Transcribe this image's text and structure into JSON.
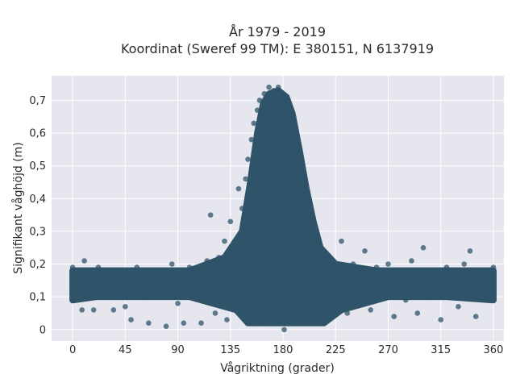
{
  "chart_data": {
    "type": "scatter",
    "title_line1": "År 1979 - 2019",
    "title_line2": "Koordinat (Sweref 99 TM): E 380151, N 6137919",
    "xlabel": "Vågriktning (grader)",
    "ylabel": "Signifikant våghöjd (m)",
    "xlim": [
      -18,
      369
    ],
    "ylim": [
      -0.035,
      0.775
    ],
    "x_ticks": [
      {
        "value": 0,
        "label": "0"
      },
      {
        "value": 45,
        "label": "45"
      },
      {
        "value": 90,
        "label": "90"
      },
      {
        "value": 135,
        "label": "135"
      },
      {
        "value": 180,
        "label": "180"
      },
      {
        "value": 225,
        "label": "225"
      },
      {
        "value": 270,
        "label": "270"
      },
      {
        "value": 315,
        "label": "315"
      },
      {
        "value": 360,
        "label": "360"
      }
    ],
    "y_ticks": [
      {
        "value": 0,
        "label": "0"
      },
      {
        "value": 0.1,
        "label": "0,1"
      },
      {
        "value": 0.2,
        "label": "0,2"
      },
      {
        "value": 0.3,
        "label": "0,3"
      },
      {
        "value": 0.4,
        "label": "0,4"
      },
      {
        "value": 0.5,
        "label": "0,5"
      },
      {
        "value": 0.6,
        "label": "0,6"
      },
      {
        "value": 0.7,
        "label": "0,7"
      }
    ],
    "grid": true,
    "colors": {
      "marker": "#2f5369",
      "plot_background": "#e6e6ee",
      "grid": "#ffffff"
    },
    "series": [
      {
        "points": [
          [
            0,
            0.19
          ],
          [
            0,
            0.09
          ],
          [
            5,
            0.17
          ],
          [
            8,
            0.06
          ],
          [
            10,
            0.21
          ],
          [
            12,
            0.15
          ],
          [
            18,
            0.06
          ],
          [
            22,
            0.19
          ],
          [
            30,
            0.11
          ],
          [
            35,
            0.06
          ],
          [
            40,
            0.18
          ],
          [
            45,
            0.07
          ],
          [
            50,
            0.03
          ],
          [
            55,
            0.19
          ],
          [
            60,
            0.1
          ],
          [
            65,
            0.02
          ],
          [
            70,
            0.18
          ],
          [
            75,
            0.12
          ],
          [
            80,
            0.01
          ],
          [
            85,
            0.2
          ],
          [
            90,
            0.08
          ],
          [
            95,
            0.02
          ],
          [
            100,
            0.19
          ],
          [
            105,
            0.11
          ],
          [
            110,
            0.02
          ],
          [
            115,
            0.21
          ],
          [
            118,
            0.35
          ],
          [
            122,
            0.05
          ],
          [
            125,
            0.22
          ],
          [
            130,
            0.27
          ],
          [
            132,
            0.03
          ],
          [
            135,
            0.33
          ],
          [
            140,
            0.14
          ],
          [
            142,
            0.43
          ],
          [
            145,
            0.37
          ],
          [
            148,
            0.46
          ],
          [
            150,
            0.52
          ],
          [
            153,
            0.58
          ],
          [
            155,
            0.63
          ],
          [
            158,
            0.67
          ],
          [
            160,
            0.7
          ],
          [
            162,
            0.02
          ],
          [
            164,
            0.72
          ],
          [
            166,
            0.31
          ],
          [
            168,
            0.74
          ],
          [
            170,
            0.05
          ],
          [
            172,
            0.73
          ],
          [
            174,
            0.4
          ],
          [
            176,
            0.74
          ],
          [
            178,
            0.12
          ],
          [
            180,
            0.72
          ],
          [
            181,
            0.0
          ],
          [
            182,
            0.55
          ],
          [
            184,
            0.7
          ],
          [
            186,
            0.24
          ],
          [
            188,
            0.66
          ],
          [
            190,
            0.6
          ],
          [
            192,
            0.08
          ],
          [
            194,
            0.52
          ],
          [
            196,
            0.45
          ],
          [
            198,
            0.36
          ],
          [
            200,
            0.28
          ],
          [
            202,
            0.4
          ],
          [
            204,
            0.22
          ],
          [
            206,
            0.33
          ],
          [
            208,
            0.16
          ],
          [
            210,
            0.26
          ],
          [
            212,
            0.12
          ],
          [
            215,
            0.2
          ],
          [
            218,
            0.04
          ],
          [
            220,
            0.22
          ],
          [
            225,
            0.14
          ],
          [
            230,
            0.27
          ],
          [
            235,
            0.05
          ],
          [
            240,
            0.2
          ],
          [
            245,
            0.11
          ],
          [
            250,
            0.24
          ],
          [
            255,
            0.06
          ],
          [
            260,
            0.19
          ],
          [
            265,
            0.13
          ],
          [
            270,
            0.2
          ],
          [
            275,
            0.04
          ],
          [
            280,
            0.18
          ],
          [
            285,
            0.09
          ],
          [
            290,
            0.21
          ],
          [
            295,
            0.05
          ],
          [
            300,
            0.25
          ],
          [
            305,
            0.1
          ],
          [
            310,
            0.18
          ],
          [
            315,
            0.03
          ],
          [
            320,
            0.19
          ],
          [
            325,
            0.12
          ],
          [
            330,
            0.07
          ],
          [
            335,
            0.2
          ],
          [
            340,
            0.24
          ],
          [
            345,
            0.04
          ],
          [
            350,
            0.18
          ],
          [
            355,
            0.09
          ],
          [
            360,
            0.19
          ],
          [
            360,
            0.13
          ]
        ]
      }
    ]
  }
}
